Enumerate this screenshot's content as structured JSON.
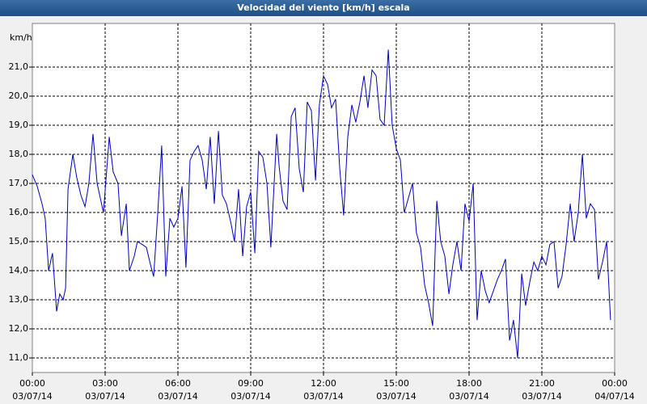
{
  "chart_data": {
    "type": "line",
    "title": "Velocidad del viento [km/h] escala",
    "y_label": "km/h",
    "xlim": [
      0,
      24
    ],
    "xticks": [
      {
        "value": 0,
        "label": "00:00",
        "date": "03/07/14"
      },
      {
        "value": 3,
        "label": "03:00",
        "date": "03/07/14"
      },
      {
        "value": 6,
        "label": "06:00",
        "date": "03/07/14"
      },
      {
        "value": 9,
        "label": "09:00",
        "date": "03/07/14"
      },
      {
        "value": 12,
        "label": "12:00",
        "date": "03/07/14"
      },
      {
        "value": 15,
        "label": "15:00",
        "date": "03/07/14"
      },
      {
        "value": 18,
        "label": "18:00",
        "date": "03/07/14"
      },
      {
        "value": 21,
        "label": "21:00",
        "date": "03/07/14"
      },
      {
        "value": 24,
        "label": "00:00",
        "date": "04/07/14"
      }
    ],
    "ylim": [
      10.5,
      22.5
    ],
    "yticks": [
      {
        "value": 11,
        "label": "11,0"
      },
      {
        "value": 12,
        "label": "12,0"
      },
      {
        "value": 13,
        "label": "13,0"
      },
      {
        "value": 14,
        "label": "14,0"
      },
      {
        "value": 15,
        "label": "15,0"
      },
      {
        "value": 16,
        "label": "16,0"
      },
      {
        "value": 17,
        "label": "17,0"
      },
      {
        "value": 18,
        "label": "18,0"
      },
      {
        "value": 19,
        "label": "19,0"
      },
      {
        "value": 20,
        "label": "20,0"
      },
      {
        "value": 21,
        "label": "21,0"
      }
    ],
    "grid": true,
    "x": [
      0,
      0.2,
      0.4,
      0.53,
      0.67,
      0.83,
      1,
      1.13,
      1.27,
      1.37,
      1.47,
      1.67,
      1.83,
      2,
      2.17,
      2.33,
      2.5,
      2.67,
      2.93,
      3.17,
      3.33,
      3.53,
      3.67,
      3.87,
      4,
      4.2,
      4.33,
      4.53,
      4.7,
      4.87,
      5,
      5.17,
      5.33,
      5.5,
      5.67,
      5.83,
      6,
      6.17,
      6.33,
      6.5,
      6.67,
      6.83,
      7,
      7.17,
      7.33,
      7.5,
      7.67,
      7.83,
      8,
      8.17,
      8.33,
      8.5,
      8.67,
      8.83,
      9,
      9.17,
      9.33,
      9.5,
      9.67,
      9.83,
      10.07,
      10.17,
      10.33,
      10.5,
      10.67,
      10.83,
      11,
      11.17,
      11.33,
      11.5,
      11.67,
      11.83,
      12,
      12.17,
      12.33,
      12.5,
      12.67,
      12.83,
      13,
      13.17,
      13.33,
      13.5,
      13.67,
      13.83,
      14,
      14.17,
      14.33,
      14.5,
      14.67,
      14.83,
      15,
      15.17,
      15.33,
      15.5,
      15.67,
      15.83,
      16,
      16.17,
      16.33,
      16.5,
      16.67,
      16.83,
      17,
      17.17,
      17.33,
      17.5,
      17.67,
      17.83,
      18,
      18.17,
      18.33,
      18.5,
      18.67,
      18.83,
      19,
      19.17,
      19.33,
      19.5,
      19.67,
      19.83,
      20,
      20.17,
      20.33,
      20.5,
      20.67,
      20.83,
      21,
      21.17,
      21.33,
      21.5,
      21.67,
      21.83,
      22,
      22.17,
      22.33,
      22.5,
      22.67,
      22.83,
      23,
      23.17,
      23.33,
      23.5,
      23.67,
      23.83
    ],
    "series": [
      {
        "color": "#0000c0",
        "values": [
          17.3,
          16.9,
          16.3,
          15.8,
          14.0,
          14.6,
          12.6,
          13.2,
          13.0,
          13.4,
          16.8,
          18.0,
          17.2,
          16.6,
          16.2,
          17.0,
          18.7,
          17.0,
          16.0,
          18.6,
          17.4,
          17.0,
          15.2,
          16.3,
          14.0,
          14.5,
          15.0,
          14.9,
          14.8,
          14.2,
          13.8,
          16.0,
          18.3,
          13.8,
          15.8,
          15.5,
          15.8,
          16.9,
          14.1,
          17.8,
          18.1,
          18.3,
          17.8,
          16.8,
          18.6,
          16.3,
          18.8,
          16.6,
          16.3,
          15.7,
          15.0,
          16.8,
          14.5,
          16.2,
          16.7,
          14.6,
          18.1,
          17.9,
          17.0,
          14.8,
          18.7,
          17.6,
          16.4,
          16.1,
          19.3,
          19.6,
          17.5,
          16.7,
          19.8,
          19.5,
          17.1,
          19.7,
          20.7,
          20.4,
          19.6,
          19.9,
          17.5,
          15.9,
          18.6,
          19.7,
          19.1,
          19.8,
          20.7,
          19.6,
          20.9,
          20.7,
          19.2,
          19.0,
          21.6,
          19.0,
          18.2,
          17.8,
          16.0,
          16.5,
          17.0,
          15.3,
          14.8,
          13.5,
          12.9,
          12.1,
          16.4,
          15.0,
          14.5,
          13.2,
          14.2,
          15.0,
          14.0,
          16.3,
          15.7,
          17.0,
          12.3,
          14.0,
          13.3,
          12.9,
          13.3,
          13.7,
          14.0,
          14.4,
          11.6,
          12.3,
          11.0,
          13.9,
          12.8,
          13.6,
          14.3,
          14.0,
          14.5,
          14.2,
          14.9,
          15.0,
          13.4,
          13.8,
          14.9,
          16.3,
          15.0,
          16.0,
          18.0,
          15.8,
          16.3,
          16.1,
          13.7,
          14.3,
          15.0,
          12.3
        ]
      }
    ]
  }
}
